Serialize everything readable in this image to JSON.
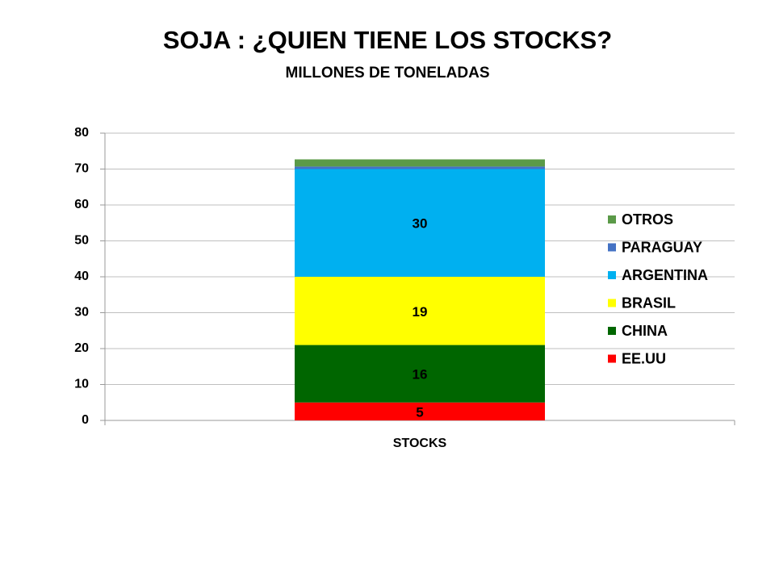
{
  "chart_data": {
    "type": "stacked_bar",
    "title": "SOJA : ¿QUIEN TIENE LOS STOCKS?",
    "subtitle": "MILLONES DE TONELADAS",
    "categories": [
      "STOCKS"
    ],
    "series": [
      {
        "name": "EE.UU",
        "color": "#ff0000",
        "values": [
          5
        ],
        "labeled": true
      },
      {
        "name": "CHINA",
        "color": "#006600",
        "values": [
          16
        ],
        "labeled": true
      },
      {
        "name": "BRASIL",
        "color": "#ffff00",
        "values": [
          19
        ],
        "labeled": true
      },
      {
        "name": "ARGENTINA",
        "color": "#00b0f0",
        "values": [
          30
        ],
        "labeled": true
      },
      {
        "name": "PARAGUAY",
        "color": "#4472c4",
        "values": [
          0.7
        ],
        "labeled": false
      },
      {
        "name": "OTROS",
        "color": "#5b9a48",
        "values": [
          2
        ],
        "labeled": false
      }
    ],
    "ylim": [
      0,
      80
    ],
    "yticks": [
      0,
      10,
      20,
      30,
      40,
      50,
      60,
      70,
      80
    ],
    "grid": true,
    "legend": "right"
  }
}
